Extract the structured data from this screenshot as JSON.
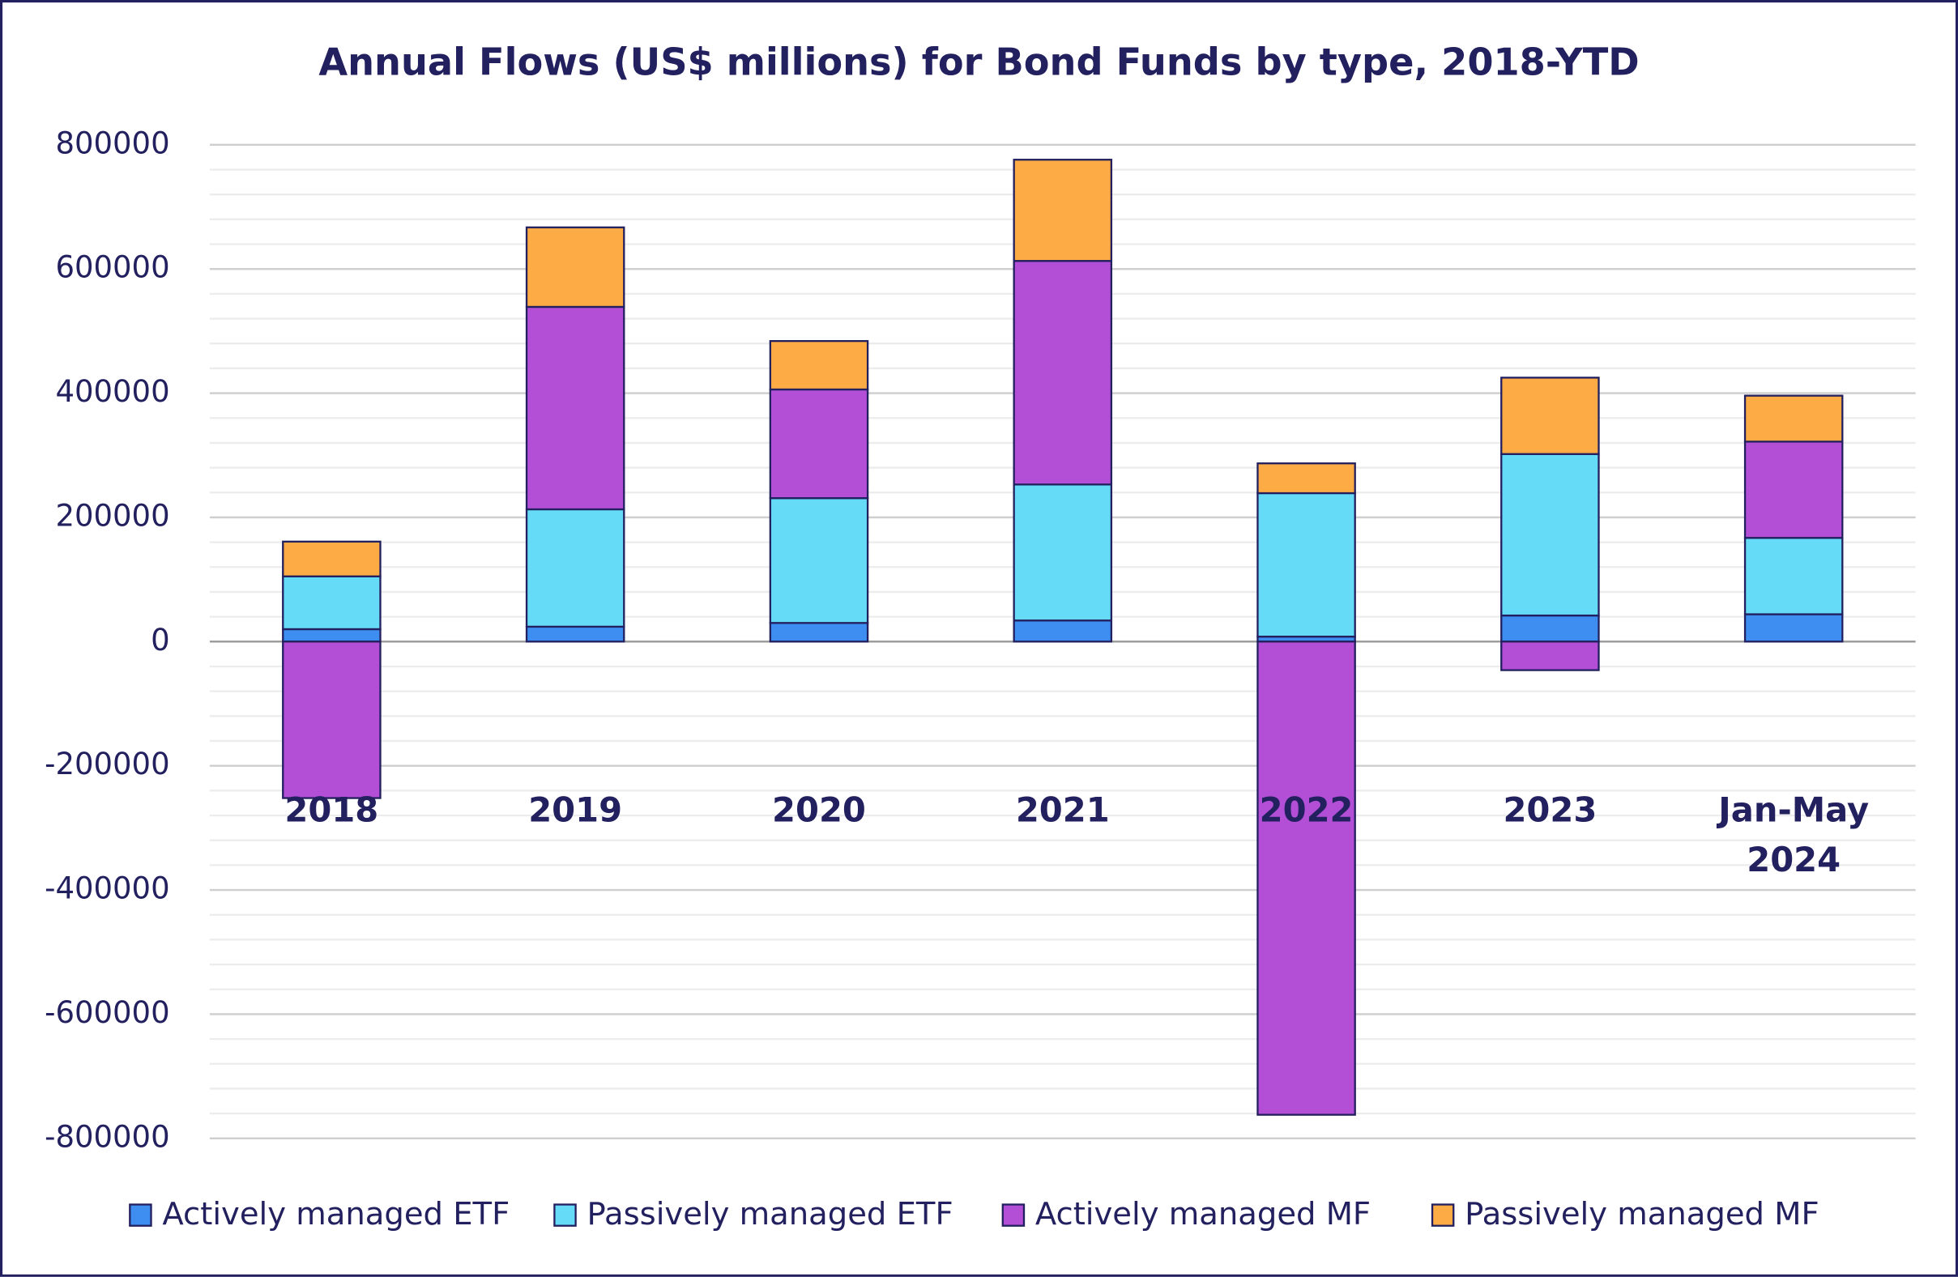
{
  "chart_data": {
    "type": "stacked_bar",
    "title": "Annual Flows (US$ millions) for Bond Funds by type, 2018-YTD",
    "categories": [
      "2018",
      "2019",
      "2020",
      "2021",
      "2022",
      "2023",
      "Jan-May 2024"
    ],
    "series": [
      {
        "name": "Actively managed ETF",
        "color": "#3d8ef0",
        "values": [
          20000,
          24000,
          30000,
          34000,
          8000,
          42000,
          44000
        ]
      },
      {
        "name": "Passively managed ETF",
        "color": "#66dbf7",
        "values": [
          85000,
          189000,
          201000,
          219000,
          231000,
          260000,
          123000
        ]
      },
      {
        "name": "Actively managed MF",
        "color": "#b24fd6",
        "values": [
          -252000,
          326000,
          175000,
          360000,
          -762000,
          -46000,
          155000
        ]
      },
      {
        "name": "Passively managed MF",
        "color": "#fdab45",
        "values": [
          56000,
          128000,
          78000,
          163000,
          48000,
          123000,
          74000
        ]
      }
    ],
    "ylim": [
      -800000,
      800000
    ],
    "yticks": [
      -800000,
      -600000,
      -400000,
      -200000,
      0,
      200000,
      400000,
      600000,
      800000
    ],
    "minor_grid_step": 40000,
    "grid": true,
    "legend": "bottom"
  }
}
